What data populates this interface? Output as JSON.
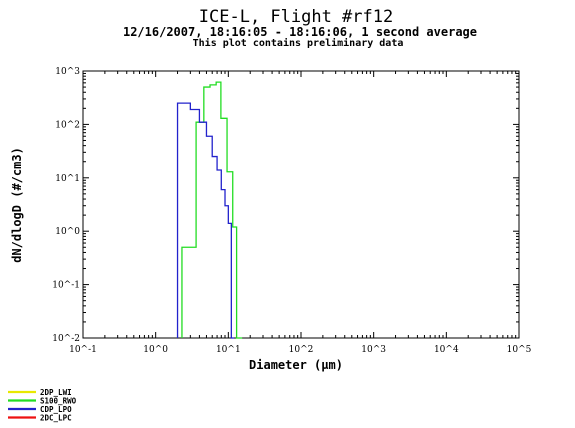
{
  "title": "ICE-L, Flight #rf12",
  "subtitle": "12/16/2007, 18:16:05 - 18:16:06, 1 second average",
  "note": "This plot contains preliminary data",
  "chart_data": {
    "type": "line",
    "step": true,
    "xlabel": "Diameter (µm)",
    "ylabel": "dN/dlogD (#/cm3)",
    "xscale": "log",
    "yscale": "log",
    "xlim": [
      0.1,
      100000
    ],
    "ylim": [
      0.01,
      1000
    ],
    "grid": false,
    "legend_placement": "bottom-left",
    "x_ticks": [
      {
        "value": 0.1,
        "label": "10^-1"
      },
      {
        "value": 1,
        "label": "10^0"
      },
      {
        "value": 10,
        "label": "10^1"
      },
      {
        "value": 100,
        "label": "10^2"
      },
      {
        "value": 1000,
        "label": "10^3"
      },
      {
        "value": 10000,
        "label": "10^4"
      },
      {
        "value": 100000,
        "label": "10^5"
      }
    ],
    "y_ticks": [
      {
        "value": 0.01,
        "label": "10^-2"
      },
      {
        "value": 0.1,
        "label": "10^-1"
      },
      {
        "value": 1,
        "label": "10^0"
      },
      {
        "value": 10,
        "label": "10^1"
      },
      {
        "value": 100,
        "label": "10^2"
      },
      {
        "value": 1000,
        "label": "10^3"
      }
    ],
    "series": [
      {
        "name": "2DP_LWI",
        "color": "#e8e800",
        "edges": [],
        "values": []
      },
      {
        "name": "S100_RWO",
        "color": "#22dd22",
        "edges": [
          2.3,
          3.6,
          4.6,
          5.6,
          6.8,
          7.9,
          9.6,
          11.5,
          13.0,
          15.5
        ],
        "values": [
          0.5,
          110,
          500,
          550,
          620,
          130,
          13,
          1.2,
          0.01
        ]
      },
      {
        "name": "CDP_LPO",
        "color": "#2222cc",
        "edges": [
          2.0,
          3.0,
          4.0,
          5.0,
          6.0,
          7.0,
          8.0,
          9.0,
          10.0,
          11.0,
          12.0
        ],
        "values": [
          250,
          190,
          110,
          60,
          25,
          14,
          6,
          3,
          1.4,
          0.01
        ]
      },
      {
        "name": "2DC_LPC",
        "color": "#ee1111",
        "edges": [],
        "values": []
      }
    ]
  }
}
